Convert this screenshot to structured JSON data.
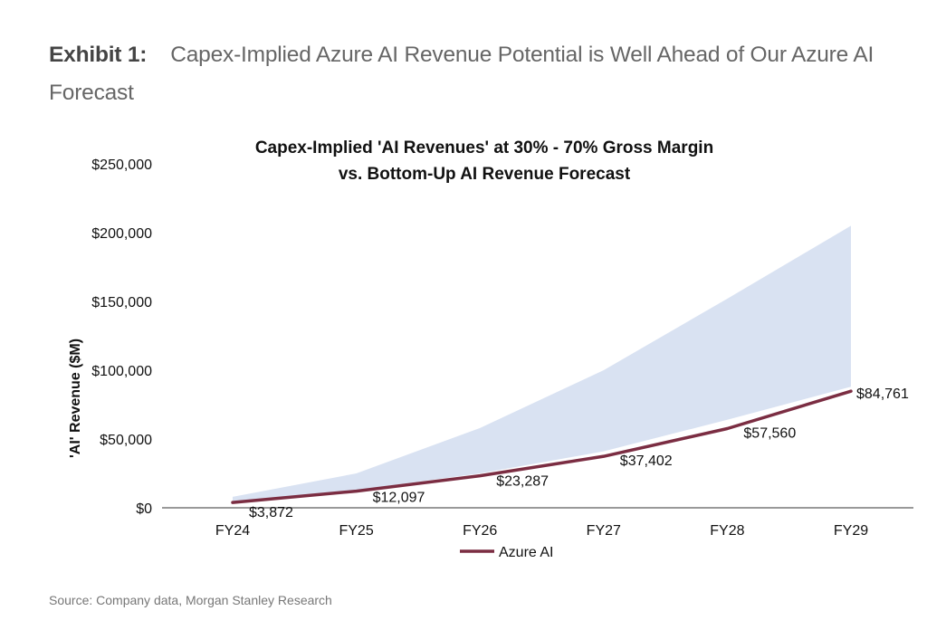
{
  "exhibit": {
    "label": "Exhibit 1:",
    "title": "Capex-Implied Azure AI Revenue Potential is Well Ahead of Our Azure AI Forecast"
  },
  "source": "Source: Company data, Morgan Stanley Research",
  "colors": {
    "band": "#d9e2f2",
    "line": "#7b2d42",
    "axis": "#999999"
  },
  "chart_data": {
    "type": "area",
    "title": "Capex-Implied 'AI Revenues' at 30% - 70% Gross Margin",
    "subtitle": "vs. Bottom-Up AI Revenue Forecast",
    "xlabel": "",
    "ylabel": "'AI' Revenue ($M)",
    "ylim": [
      0,
      250000
    ],
    "yticks": [
      0,
      50000,
      100000,
      150000,
      200000,
      250000
    ],
    "ytick_labels": [
      "$0",
      "$50,000",
      "$100,000",
      "$150,000",
      "$200,000",
      "$250,000"
    ],
    "categories": [
      "FY24",
      "FY25",
      "FY26",
      "FY27",
      "FY28",
      "FY29"
    ],
    "grid": false,
    "legend_position": "bottom",
    "series": [
      {
        "name": "Capex-Implied 'AI Revenues' range (30%-70% GM)",
        "type": "band",
        "lower": [
          4500,
          13000,
          25000,
          41000,
          64000,
          88000
        ],
        "upper": [
          8000,
          25000,
          58000,
          100000,
          152000,
          205000
        ],
        "in_legend": false
      },
      {
        "name": "Azure AI",
        "type": "line",
        "values": [
          3872,
          12097,
          23287,
          37402,
          57560,
          84761
        ],
        "labels": [
          "$3,872",
          "$12,097",
          "$23,287",
          "$37,402",
          "$57,560",
          "$84,761"
        ],
        "in_legend": true
      }
    ]
  }
}
